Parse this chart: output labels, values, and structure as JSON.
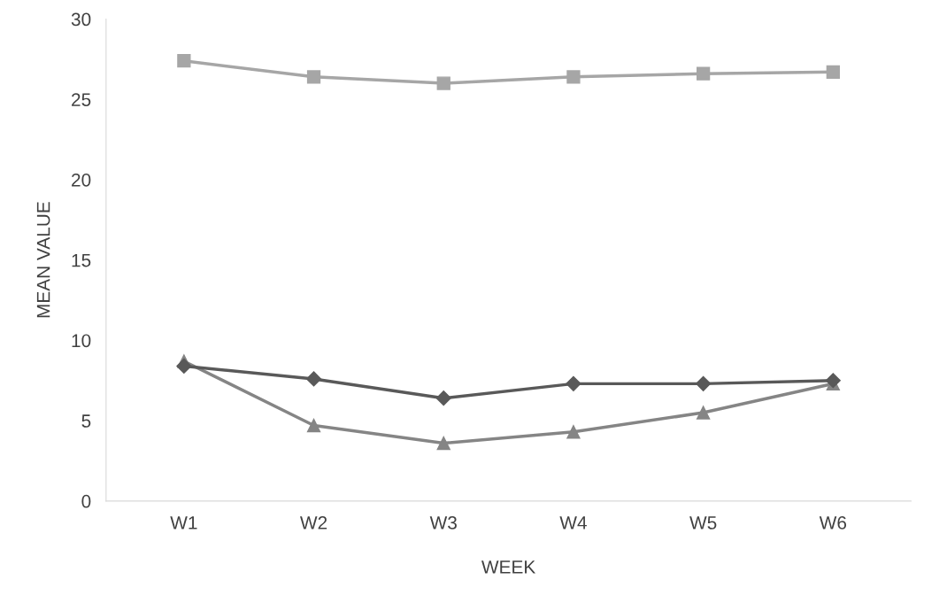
{
  "chart_data": {
    "type": "line",
    "xlabel": "WEEK",
    "ylabel": "MEAN VALUE",
    "categories": [
      "W1",
      "W2",
      "W3",
      "W4",
      "W5",
      "W6"
    ],
    "series": [
      {
        "color": "#a6a6a6",
        "marker": "square",
        "values": [
          27.4,
          26.4,
          26.0,
          26.4,
          26.6,
          26.7
        ]
      },
      {
        "color": "#595959",
        "marker": "diamond",
        "values": [
          8.4,
          7.6,
          6.4,
          7.3,
          7.3,
          7.5
        ]
      },
      {
        "color": "#858585",
        "marker": "triangle",
        "values": [
          8.7,
          4.7,
          3.6,
          4.3,
          5.5,
          7.3
        ]
      }
    ],
    "ylim": [
      0,
      30
    ],
    "yticks": [
      0,
      5,
      10,
      15,
      20,
      25,
      30
    ],
    "grid": false,
    "legend": false,
    "line_style": "solid"
  }
}
